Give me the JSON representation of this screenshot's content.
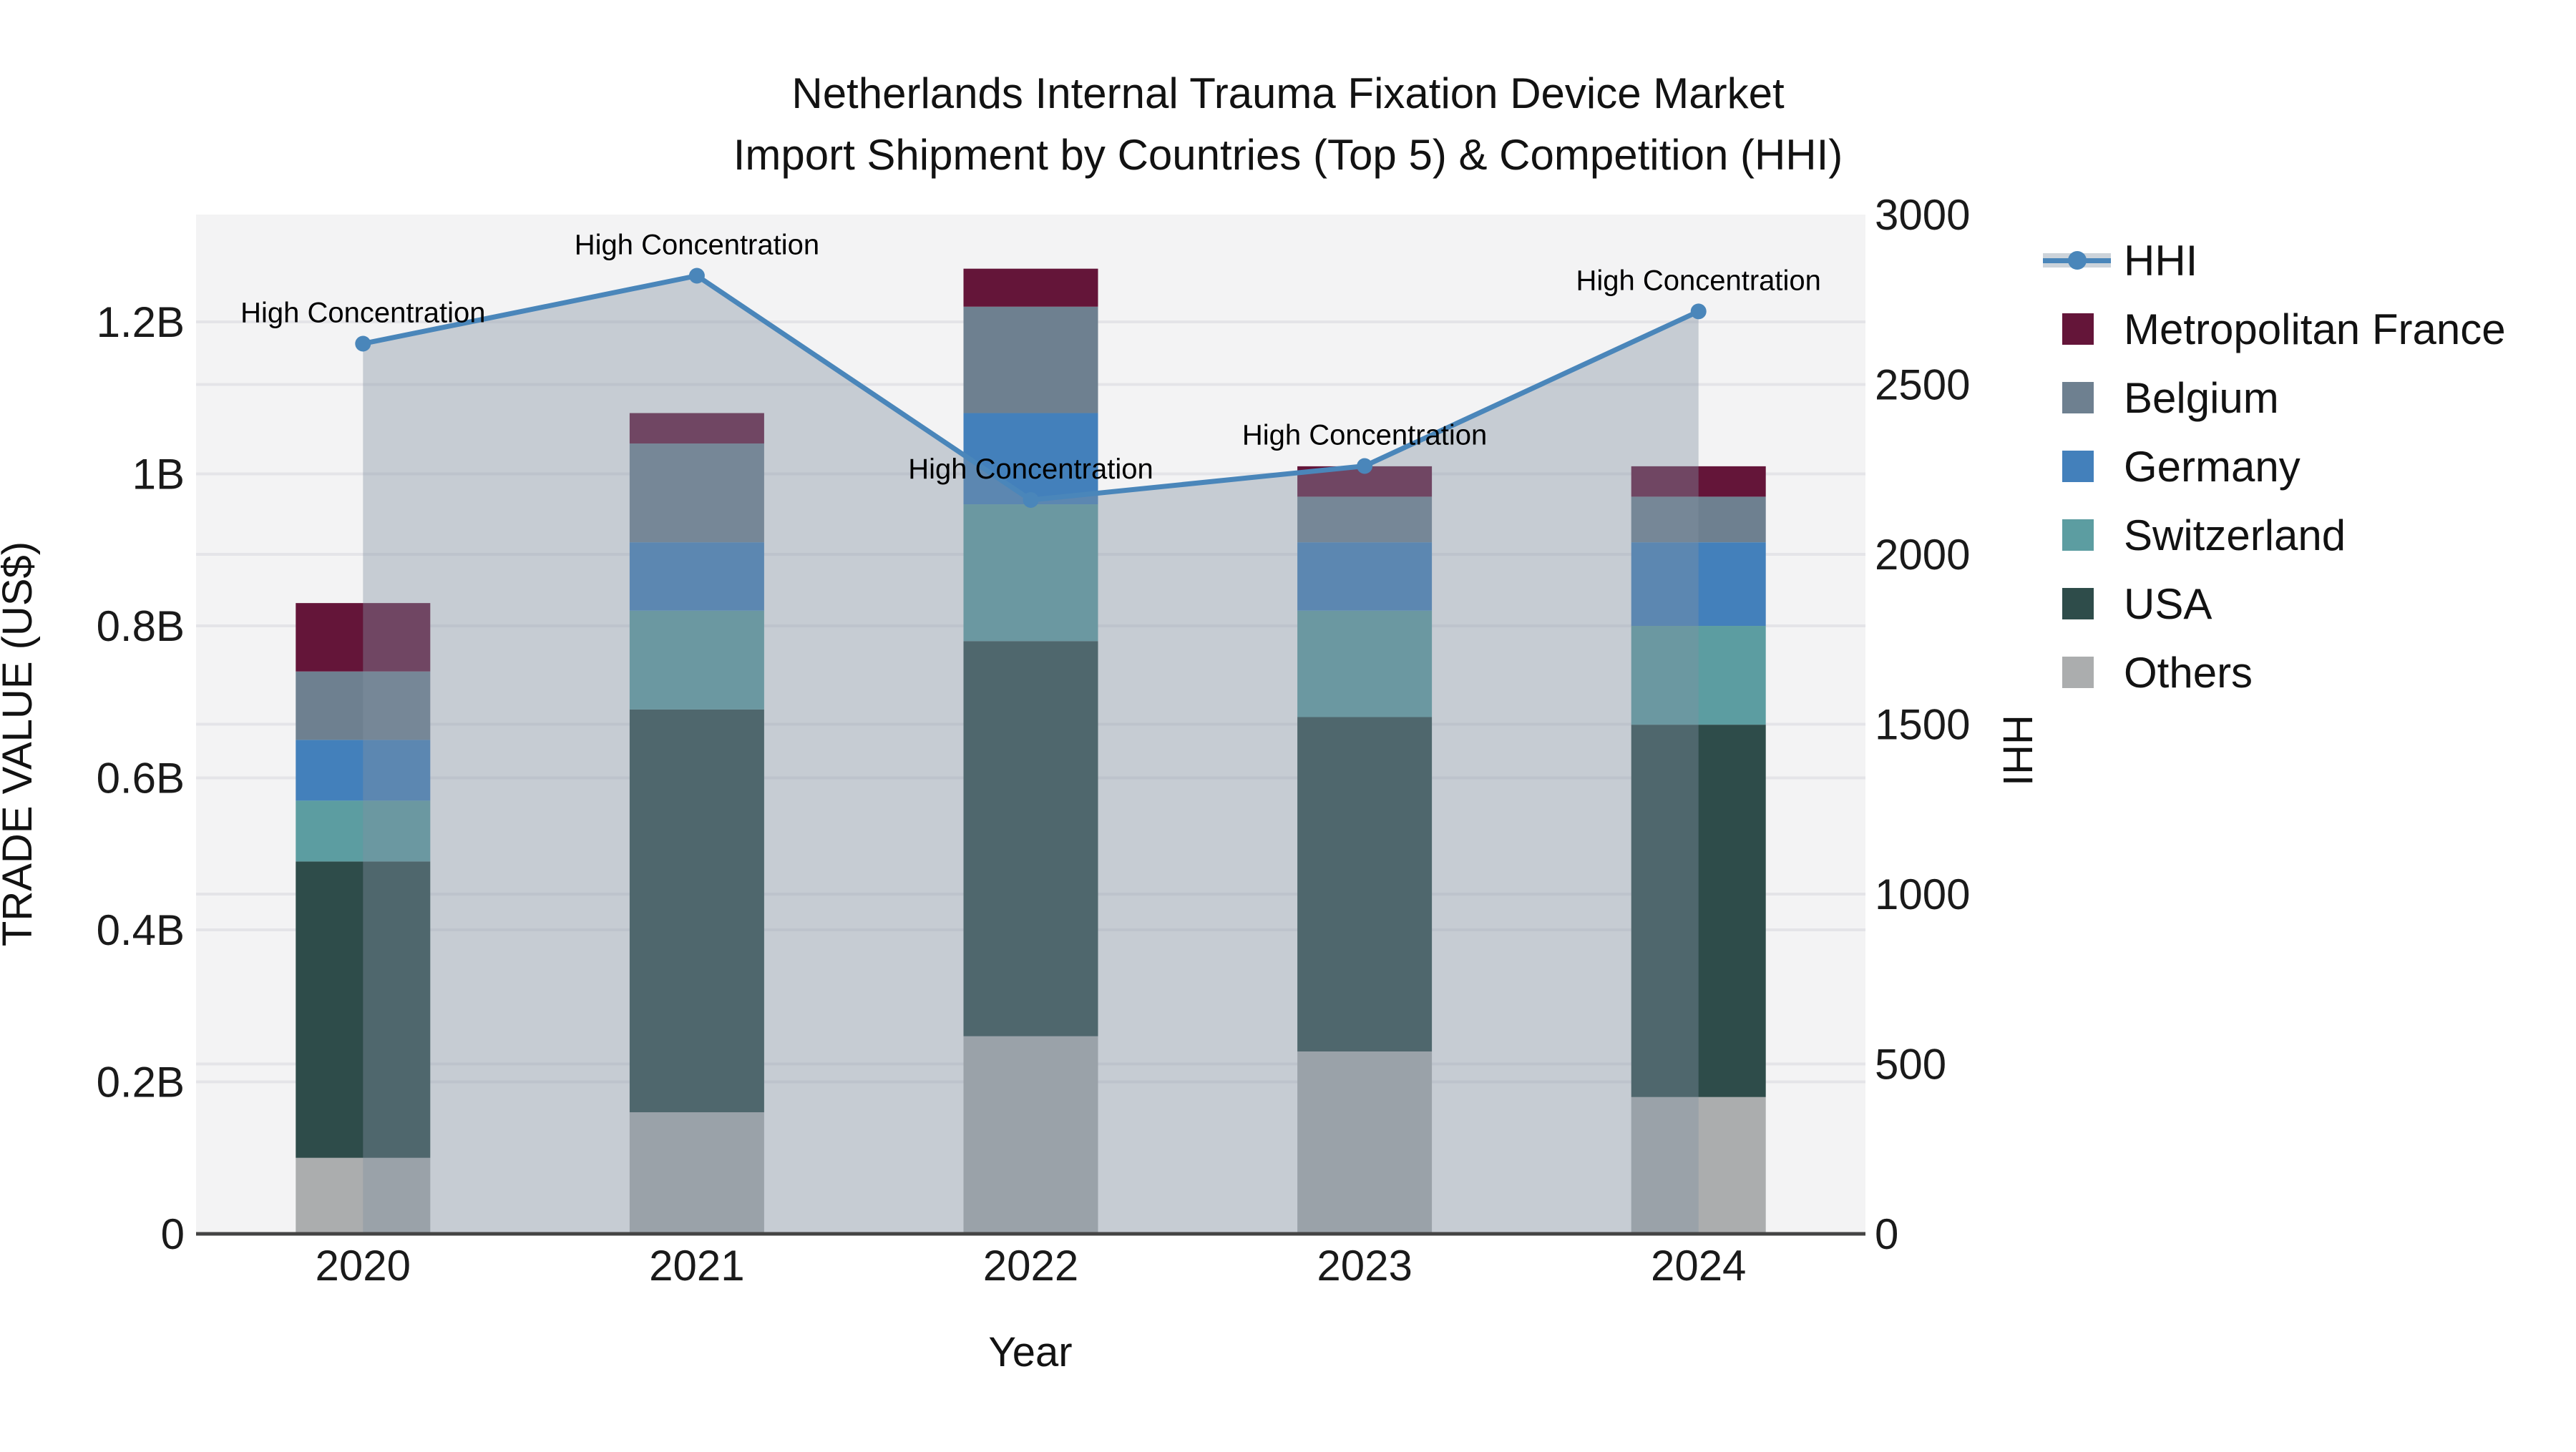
{
  "title": {
    "line1": "Netherlands Internal Trauma Fixation Device Market",
    "line2": "Import Shipment by Countries (Top 5) & Competition (HHI)"
  },
  "colors": {
    "plot_background": "#f3f3f4",
    "gridline": "#e4e4e8",
    "zero_line": "#444444",
    "hhi_line": "#4a86ba",
    "hhi_area": "rgba(130,145,162,0.40)",
    "hhi_legend_band": "#ccd3da",
    "annotation_text": "#000000",
    "tick_text": "#1a1a1a"
  },
  "chart_data": {
    "type": "combo-stacked-bar-line",
    "categories": [
      "2020",
      "2021",
      "2022",
      "2023",
      "2024"
    ],
    "xlabel": "Year",
    "ylabel_left": "TRADE VALUE (US$)",
    "ylabel_right": "HHI",
    "bar_unit": "billion US$",
    "ylim_left": [
      0,
      1.3412
    ],
    "ylim_right": [
      0,
      3000
    ],
    "series": [
      {
        "name": "Others",
        "color": "#abadae",
        "values": [
          0.1,
          0.16,
          0.26,
          0.24,
          0.18
        ]
      },
      {
        "name": "USA",
        "color": "#2e4c4a",
        "values": [
          0.39,
          0.53,
          0.52,
          0.44,
          0.49
        ]
      },
      {
        "name": "Switzerland",
        "color": "#5c9da1",
        "values": [
          0.08,
          0.13,
          0.18,
          0.14,
          0.13
        ]
      },
      {
        "name": "Germany",
        "color": "#4380bb",
        "values": [
          0.08,
          0.09,
          0.12,
          0.09,
          0.11
        ]
      },
      {
        "name": "Belgium",
        "color": "#6e8090",
        "values": [
          0.09,
          0.13,
          0.14,
          0.06,
          0.06
        ]
      },
      {
        "name": "Metropolitan France",
        "color": "#641539",
        "values": [
          0.09,
          0.04,
          0.05,
          0.04,
          0.04
        ]
      }
    ],
    "line": {
      "name": "HHI",
      "values": [
        2620,
        2820,
        2160,
        2260,
        2715
      ]
    },
    "annotations": [
      {
        "x": "2020",
        "text": "High Concentration"
      },
      {
        "x": "2021",
        "text": "High Concentration"
      },
      {
        "x": "2022",
        "text": "High Concentration"
      },
      {
        "x": "2023",
        "text": "High Concentration"
      },
      {
        "x": "2024",
        "text": "High Concentration"
      }
    ],
    "yticks_left": [
      {
        "v": 0,
        "label": "0"
      },
      {
        "v": 0.2,
        "label": "0.2B"
      },
      {
        "v": 0.4,
        "label": "0.4B"
      },
      {
        "v": 0.6,
        "label": "0.6B"
      },
      {
        "v": 0.8,
        "label": "0.8B"
      },
      {
        "v": 1.0,
        "label": "1B"
      },
      {
        "v": 1.2,
        "label": "1.2B"
      }
    ],
    "yticks_right": [
      0,
      500,
      1000,
      1500,
      2000,
      2500,
      3000
    ],
    "legend_position": "right",
    "grid": true
  },
  "legend": {
    "items": [
      {
        "label": "HHI",
        "type": "line"
      },
      {
        "label": "Metropolitan France",
        "type": "swatch"
      },
      {
        "label": "Belgium",
        "type": "swatch"
      },
      {
        "label": "Germany",
        "type": "swatch"
      },
      {
        "label": "Switzerland",
        "type": "swatch"
      },
      {
        "label": "USA",
        "type": "swatch"
      },
      {
        "label": "Others",
        "type": "swatch"
      }
    ]
  }
}
